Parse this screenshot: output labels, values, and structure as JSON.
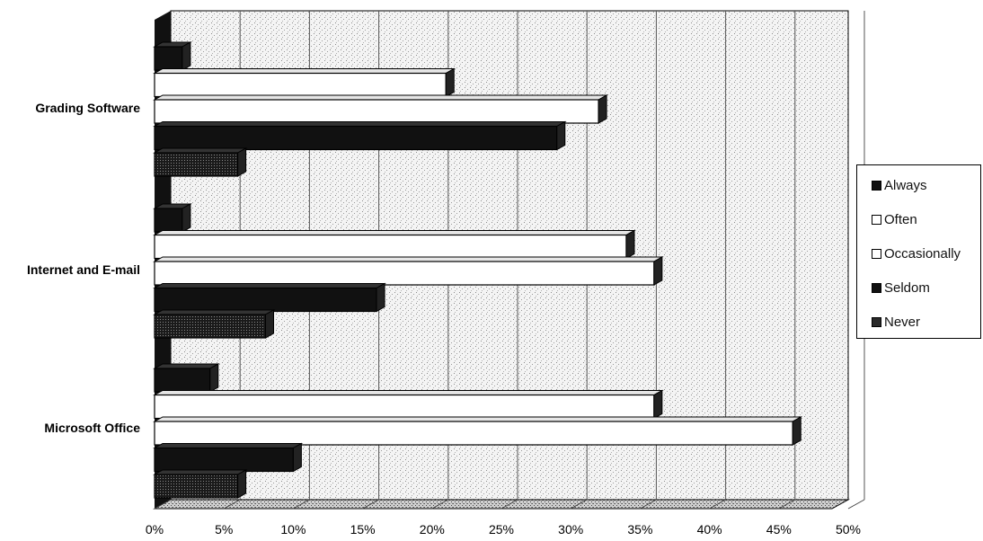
{
  "chart_data": {
    "type": "bar",
    "orientation": "horizontal",
    "style": "3d-clustered",
    "categories": [
      "Grading Software",
      "Internet and E-mail",
      "Microsoft Office"
    ],
    "x_ticks": [
      "0%",
      "5%",
      "10%",
      "15%",
      "20%",
      "25%",
      "30%",
      "35%",
      "40%",
      "45%",
      "50%"
    ],
    "xlim": [
      0,
      50
    ],
    "grid": true,
    "legend_position": "right",
    "series": [
      {
        "name": "Always",
        "color": "#111111",
        "values": [
          2,
          2,
          4
        ]
      },
      {
        "name": "Often",
        "color": "#ffffff",
        "values": [
          21,
          34,
          36
        ]
      },
      {
        "name": "Occasionally",
        "color": "#ffffff",
        "values": [
          32,
          36,
          46
        ]
      },
      {
        "name": "Seldom",
        "color": "#111111",
        "values": [
          29,
          16,
          10
        ]
      },
      {
        "name": "Never",
        "color": "#2a2a2a",
        "values": [
          6,
          8,
          6
        ]
      }
    ]
  }
}
